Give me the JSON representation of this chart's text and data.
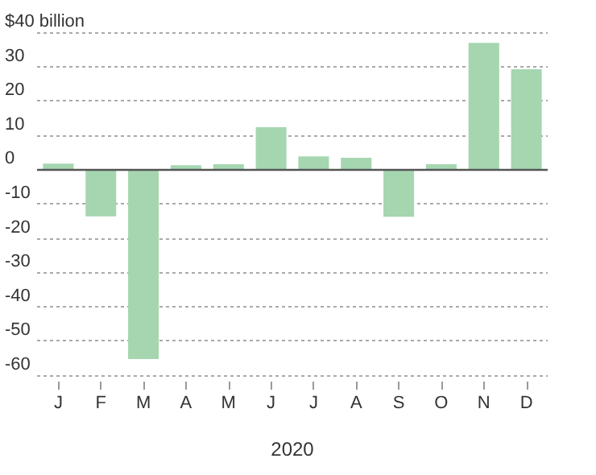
{
  "chart_data": {
    "type": "bar",
    "xlabel": "2020",
    "categories": [
      "J",
      "F",
      "M",
      "A",
      "M",
      "J",
      "J",
      "A",
      "S",
      "O",
      "N",
      "D"
    ],
    "values": [
      1.7,
      -13.7,
      -55.3,
      1.2,
      1.5,
      12.3,
      3.8,
      3.4,
      -13.8,
      1.5,
      36.9,
      29.2
    ],
    "color": "#a5d6b0",
    "ylim": [
      -60,
      40
    ],
    "yticks": [
      -60,
      -50,
      -40,
      -30,
      -20,
      -10,
      0,
      10,
      20,
      30,
      {
        "value": 40,
        "label": "$40 billion"
      }
    ],
    "ref_lines": [
      {
        "axis": "y",
        "value": 0,
        "color": "#555555",
        "line_style": "solid"
      }
    ],
    "grid": "y"
  }
}
